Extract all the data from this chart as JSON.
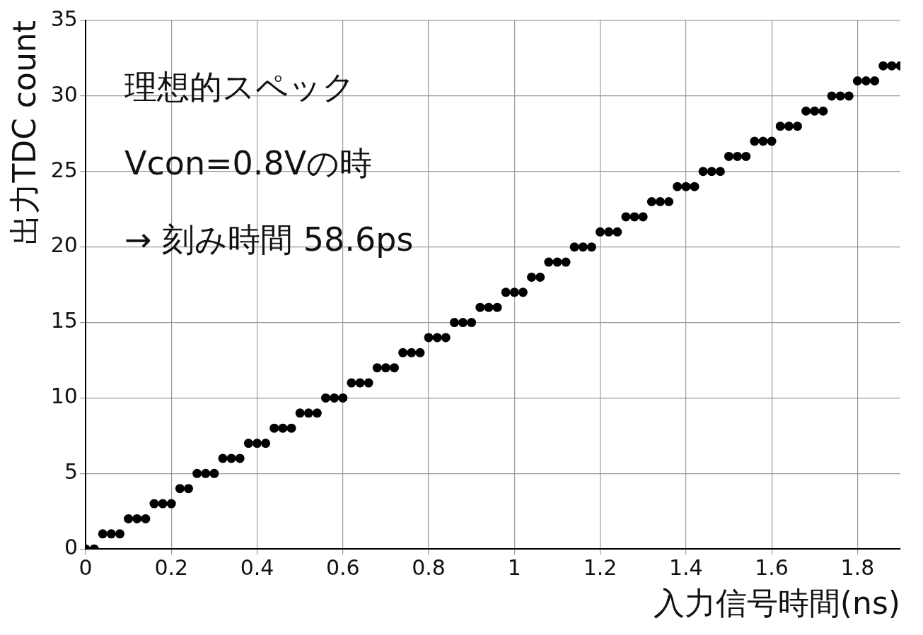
{
  "chart_data": {
    "type": "scatter",
    "xlabel": "入力信号時間(ns)",
    "ylabel": "出力TDC count",
    "annotations": [
      "理想的スペック",
      "Vcon=0.8Vの時",
      "→ 刻み時間 58.6ps"
    ],
    "x": [
      0,
      0.02,
      0.04,
      0.06,
      0.08,
      0.1,
      0.12,
      0.14,
      0.16,
      0.18,
      0.2,
      0.22,
      0.24,
      0.26,
      0.28,
      0.3,
      0.32,
      0.34,
      0.36,
      0.38,
      0.4,
      0.42,
      0.44,
      0.46,
      0.48,
      0.5,
      0.52,
      0.54,
      0.56,
      0.58,
      0.6,
      0.62,
      0.64,
      0.66,
      0.68,
      0.7,
      0.72,
      0.74,
      0.76,
      0.78,
      0.8,
      0.82,
      0.84,
      0.86,
      0.88,
      0.9,
      0.92,
      0.94,
      0.96,
      0.98,
      1,
      1.02,
      1.04,
      1.06,
      1.08,
      1.1,
      1.12,
      1.14,
      1.16,
      1.18,
      1.2,
      1.22,
      1.24,
      1.26,
      1.28,
      1.3,
      1.32,
      1.34,
      1.36,
      1.38,
      1.4,
      1.42,
      1.44,
      1.46,
      1.48,
      1.5,
      1.52,
      1.54,
      1.56,
      1.58,
      1.6,
      1.62,
      1.64,
      1.66,
      1.68,
      1.7,
      1.72,
      1.74,
      1.76,
      1.78,
      1.8,
      1.82,
      1.84,
      1.86,
      1.88,
      1.9
    ],
    "series": [
      {
        "color": "#000000",
        "values": [
          0,
          0,
          1,
          1,
          1,
          2,
          2,
          2,
          3,
          3,
          3,
          4,
          4,
          5,
          5,
          5,
          6,
          6,
          6,
          7,
          7,
          7,
          8,
          8,
          8,
          9,
          9,
          9,
          10,
          10,
          10,
          11,
          11,
          11,
          12,
          12,
          12,
          13,
          13,
          13,
          14,
          14,
          14,
          15,
          15,
          15,
          16,
          16,
          16,
          17,
          17,
          17,
          18,
          18,
          19,
          19,
          19,
          20,
          20,
          20,
          21,
          21,
          21,
          22,
          22,
          22,
          23,
          23,
          23,
          24,
          24,
          24,
          25,
          25,
          25,
          26,
          26,
          26,
          27,
          27,
          27,
          28,
          28,
          28,
          29,
          29,
          29,
          30,
          30,
          30,
          31,
          31,
          31,
          32,
          32,
          32
        ]
      }
    ],
    "xlim": [
      0,
      1.9
    ],
    "xticks": [
      0,
      0.2,
      0.4,
      0.6,
      0.8,
      1,
      1.2,
      1.4,
      1.6,
      1.8
    ],
    "ylim": [
      0,
      35
    ],
    "yticks": [
      0,
      5,
      10,
      15,
      20,
      25,
      30,
      35
    ],
    "grid": true,
    "legend": false,
    "marker": "circle"
  }
}
